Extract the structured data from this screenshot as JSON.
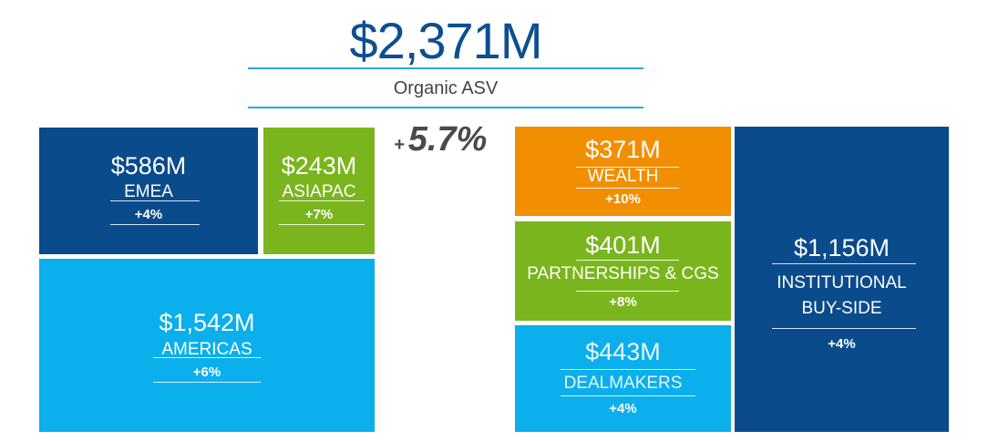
{
  "header": {
    "total": "$2,371M",
    "label": "Organic ASV",
    "growth_sign": "+",
    "growth_value": "5.7%"
  },
  "colors": {
    "navy": "#0a4b8c",
    "green": "#7ab51d",
    "sky": "#0aafec",
    "orange": "#f28f00",
    "accent_line": "#29a9e0",
    "title_blue": "#0d4f91"
  },
  "regions": {
    "emea": {
      "amount": "$586M",
      "name": "EMEA",
      "change": "+4%"
    },
    "asiapac": {
      "amount": "$243M",
      "name": "ASIAPAC",
      "change": "+7%"
    },
    "americas": {
      "amount": "$1,542M",
      "name": "AMERICAS",
      "change": "+6%"
    }
  },
  "segments": {
    "wealth": {
      "amount": "$371M",
      "name": "WEALTH",
      "change": "+10%"
    },
    "partnerships": {
      "amount": "$401M",
      "name": "PARTNERSHIPS & CGS",
      "change": "+8%"
    },
    "dealmakers": {
      "amount": "$443M",
      "name": "DEALMAKERS",
      "change": "+4%"
    },
    "institutional": {
      "amount": "$1,156M",
      "name_line1": "INSTITUTIONAL",
      "name_line2": "BUY-SIDE",
      "change": "+4%"
    }
  }
}
